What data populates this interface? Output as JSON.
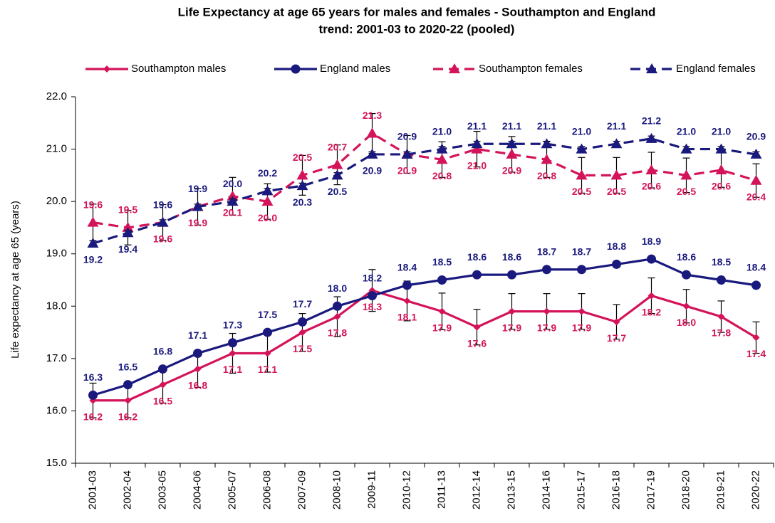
{
  "chart_data": {
    "type": "line",
    "title": "Life Expectancy at age 65 years for males and females - Southampton and England",
    "subtitle": "trend: 2001-03 to 2020-22 (pooled)",
    "y_label": "Life expectancy at age 65 (years)",
    "categories": [
      "2001-03",
      "2002-04",
      "2003-05",
      "2004-06",
      "2005-07",
      "2006-08",
      "2007-09",
      "2008-10",
      "2009-11",
      "2010-12",
      "2011-13",
      "2012-14",
      "2013-15",
      "2014-16",
      "2015-17",
      "2016-18",
      "2017-19",
      "2018-20",
      "2019-21",
      "2020-22"
    ],
    "ylim": [
      15,
      22
    ],
    "yticks": [
      {
        "value": 15,
        "label": "15.0"
      },
      {
        "value": 16,
        "label": "16.0"
      },
      {
        "value": 17,
        "label": "17.0"
      },
      {
        "value": 18,
        "label": "18.0"
      },
      {
        "value": 19,
        "label": "19.0"
      },
      {
        "value": 20,
        "label": "20.0"
      },
      {
        "value": 21,
        "label": "21.0"
      },
      {
        "value": 22,
        "label": "22.0"
      }
    ],
    "grid": false,
    "legend": "top",
    "series": [
      {
        "name": "Southampton males",
        "color": "#d4145a",
        "line_style": "solid",
        "marker": "diamond",
        "values": [
          16.2,
          16.2,
          16.5,
          16.8,
          17.1,
          17.1,
          17.5,
          17.8,
          18.3,
          18.1,
          17.9,
          17.6,
          17.9,
          17.9,
          17.9,
          17.7,
          18.2,
          18.0,
          17.8,
          17.4
        ],
        "value_labels": [
          "16.2",
          "16.2",
          "16.5",
          "16.8",
          "17.1",
          "17.1",
          "17.5",
          "17.8",
          "18.3",
          "18.1",
          "17.9",
          "17.6",
          "17.9",
          "17.9",
          "17.9",
          "17.7",
          "18.2",
          "18.0",
          "17.8",
          "17.4"
        ],
        "errors": [
          0.33,
          0.33,
          0.35,
          0.35,
          0.38,
          0.36,
          0.36,
          0.38,
          0.4,
          0.38,
          0.35,
          0.34,
          0.34,
          0.34,
          0.34,
          0.33,
          0.34,
          0.32,
          0.3,
          0.3
        ]
      },
      {
        "name": "England males",
        "color": "#1a1a7e",
        "line_style": "solid",
        "marker": "circle",
        "values": [
          16.3,
          16.5,
          16.8,
          17.1,
          17.3,
          17.5,
          17.7,
          18.0,
          18.2,
          18.4,
          18.5,
          18.6,
          18.6,
          18.7,
          18.7,
          18.8,
          18.9,
          18.6,
          18.5,
          18.4
        ],
        "value_labels": [
          "16.3",
          "16.5",
          "16.8",
          "17.1",
          "17.3",
          "17.5",
          "17.7",
          "18.0",
          "18.2",
          "18.4",
          "18.5",
          "18.6",
          "18.6",
          "18.7",
          "18.7",
          "18.8",
          "18.9",
          "18.6",
          "18.5",
          "18.4"
        ],
        "errors": [
          0.05,
          0.05,
          0.05,
          0.05,
          0.05,
          0.05,
          0.05,
          0.05,
          0.05,
          0.05,
          0.05,
          0.05,
          0.05,
          0.05,
          0.05,
          0.05,
          0.05,
          0.05,
          0.05,
          0.05
        ]
      },
      {
        "name": "Southampton females",
        "color": "#d4145a",
        "line_style": "dashed",
        "marker": "triangle",
        "values": [
          19.6,
          19.5,
          19.6,
          19.9,
          20.1,
          20.0,
          20.5,
          20.7,
          21.3,
          20.9,
          20.8,
          21.0,
          20.9,
          20.8,
          20.5,
          20.5,
          20.6,
          20.5,
          20.6,
          20.4
        ],
        "value_labels": [
          "19.6",
          "19.5",
          "19.6",
          "19.9",
          "20.1",
          "20.0",
          "20.5",
          "20.7",
          "21.3",
          "20.9",
          "20.8",
          "21.0",
          "20.9",
          "20.8",
          "20.5",
          "20.5",
          "20.6",
          "20.5",
          "20.6",
          "20.4"
        ],
        "errors": [
          0.35,
          0.33,
          0.34,
          0.35,
          0.36,
          0.34,
          0.38,
          0.38,
          0.38,
          0.36,
          0.34,
          0.34,
          0.34,
          0.34,
          0.34,
          0.34,
          0.34,
          0.33,
          0.33,
          0.32
        ]
      },
      {
        "name": "England females",
        "color": "#1a1a7e",
        "line_style": "dashed",
        "marker": "triangle",
        "values": [
          19.2,
          19.4,
          19.6,
          19.9,
          20.0,
          20.2,
          20.3,
          20.5,
          20.9,
          20.9,
          21.0,
          21.1,
          21.1,
          21.1,
          21.0,
          21.1,
          21.2,
          21.0,
          21.0,
          20.9
        ],
        "value_labels": [
          "19.2",
          "19.4",
          "19.6",
          "19.9",
          "20.0",
          "20.2",
          "20.3",
          "20.5",
          "20.9",
          "20.9",
          "21.0",
          "21.1",
          "21.1",
          "21.1",
          "21.0",
          "21.1",
          "21.2",
          "21.0",
          "21.0",
          "20.9"
        ],
        "errors": [
          0.05,
          0.05,
          0.05,
          0.05,
          0.05,
          0.05,
          0.05,
          0.05,
          0.05,
          0.05,
          0.05,
          0.05,
          0.05,
          0.05,
          0.05,
          0.05,
          0.05,
          0.05,
          0.05,
          0.05
        ]
      }
    ]
  }
}
